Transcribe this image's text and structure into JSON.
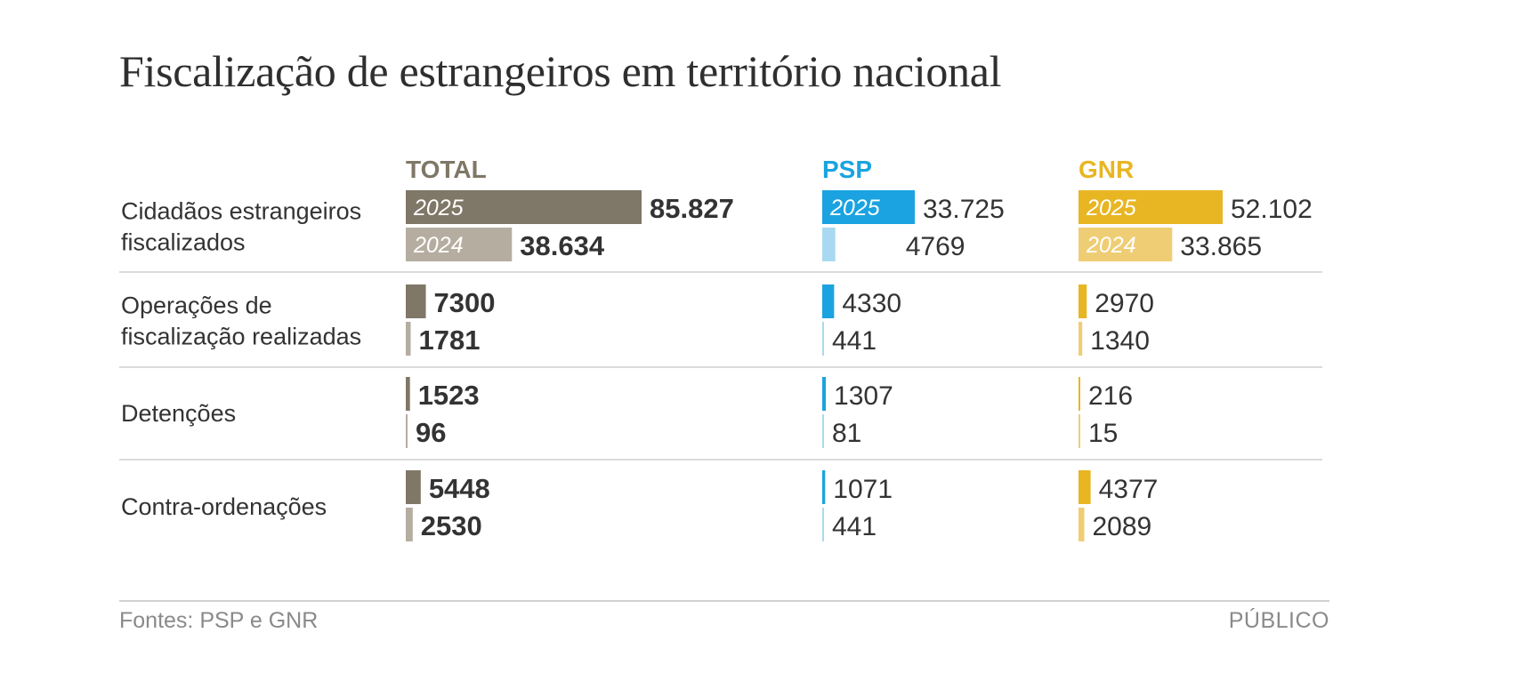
{
  "title": "Fiscalização de estrangeiros em território nacional",
  "source": "Fontes: PSP e GNR",
  "brand": "PÚBLICO",
  "colors": {
    "total_2025": "#7f7767",
    "total_2024": "#b5ada0",
    "psp_2025": "#1aa3e0",
    "psp_2024": "#a9d9f1",
    "gnr_2025": "#e8b623",
    "gnr_2024": "#efcd74",
    "separator": "#cfcfcf"
  },
  "chart_data": {
    "type": "bar",
    "orientation": "horizontal",
    "title": "Fiscalização de estrangeiros em território nacional",
    "years": [
      "2025",
      "2024"
    ],
    "groups": [
      {
        "key": "total",
        "label": "TOTAL",
        "color": "#7f7767"
      },
      {
        "key": "psp",
        "label": "PSP",
        "color": "#1aa3e0"
      },
      {
        "key": "gnr",
        "label": "GNR",
        "color": "#e8b623"
      }
    ],
    "categories": [
      {
        "label_lines": [
          "Cidadãos estrangeiros",
          "fiscalizados"
        ],
        "total": {
          "2025": {
            "value": 85827,
            "display": "85.827"
          },
          "2024": {
            "value": 38634,
            "display": "38.634"
          }
        },
        "psp": {
          "2025": {
            "value": 33725,
            "display": "33.725"
          },
          "2024": {
            "value": 4769,
            "display": "4769"
          }
        },
        "gnr": {
          "2025": {
            "value": 52102,
            "display": "52.102"
          },
          "2024": {
            "value": 33865,
            "display": "33.865"
          }
        }
      },
      {
        "label_lines": [
          "Operações de",
          "fiscalização realizadas"
        ],
        "total": {
          "2025": {
            "value": 7300,
            "display": "7300"
          },
          "2024": {
            "value": 1781,
            "display": "1781"
          }
        },
        "psp": {
          "2025": {
            "value": 4330,
            "display": "4330"
          },
          "2024": {
            "value": 441,
            "display": "441"
          }
        },
        "gnr": {
          "2025": {
            "value": 2970,
            "display": "2970"
          },
          "2024": {
            "value": 1340,
            "display": "1340"
          }
        }
      },
      {
        "label_lines": [
          "Detenções"
        ],
        "total": {
          "2025": {
            "value": 1523,
            "display": "1523"
          },
          "2024": {
            "value": 96,
            "display": "96"
          }
        },
        "psp": {
          "2025": {
            "value": 1307,
            "display": "1307"
          },
          "2024": {
            "value": 81,
            "display": "81"
          }
        },
        "gnr": {
          "2025": {
            "value": 216,
            "display": "216"
          },
          "2024": {
            "value": 15,
            "display": "15"
          }
        }
      },
      {
        "label_lines": [
          "Contra-ordenações"
        ],
        "total": {
          "2025": {
            "value": 5448,
            "display": "5448"
          },
          "2024": {
            "value": 2530,
            "display": "2530"
          }
        },
        "psp": {
          "2025": {
            "value": 1071,
            "display": "1071"
          },
          "2024": {
            "value": 441,
            "display": "441"
          }
        },
        "gnr": {
          "2025": {
            "value": 4377,
            "display": "4377"
          },
          "2024": {
            "value": 2089,
            "display": "2089"
          }
        }
      }
    ],
    "year_labels_shown_in_first_row": true,
    "grid": false,
    "legend": "none"
  }
}
